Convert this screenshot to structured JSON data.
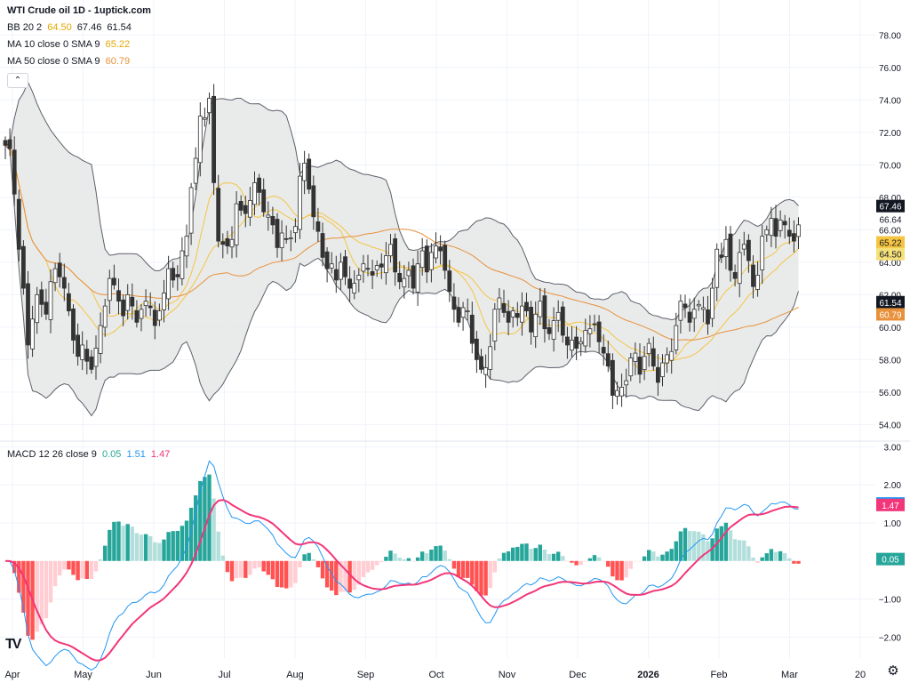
{
  "title": "WTI Crude oil 1D - 1uptick.com",
  "legend": {
    "bb": {
      "label": "BB 20 2",
      "values": [
        "64.50",
        "67.46",
        "61.54"
      ]
    },
    "ma10": {
      "label": "MA 10 close 0 SMA 9",
      "value": "65.22"
    },
    "ma50": {
      "label": "MA 50 close 0 SMA 9",
      "value": "60.79"
    },
    "macd": {
      "label": "MACD 12 26 close 9",
      "values": [
        "0.05",
        "1.51",
        "1.47"
      ]
    }
  },
  "collapse_glyph": "⌃",
  "logo_text": "TV",
  "settings_glyph": "⚙",
  "colors": {
    "bb_basis": "#f5c542",
    "ma10": "#f5c542",
    "ma50": "#e8913a",
    "bb_fill": "#e5e6e6",
    "candle_up": "#ffffff",
    "candle_down": "#333333",
    "macd_line": "#2196f3",
    "signal_line": "#f23679",
    "hist_up_strong": "#26a69a",
    "hist_up_weak": "#b2dfdb",
    "hist_down_strong": "#ff5252",
    "hist_down_weak": "#ffcdd2"
  },
  "chart_data": {
    "type": "candlestick",
    "symbol": "WTI Crude oil",
    "interval": "1D",
    "price_axis": {
      "range": [
        53.2,
        78.4
      ],
      "ticks": [
        "54.00",
        "56.00",
        "58.00",
        "60.00",
        "62.00",
        "64.00",
        "66.00",
        "68.00",
        "70.00",
        "72.00",
        "74.00",
        "76.00",
        "78.00"
      ]
    },
    "price_badges": [
      {
        "label": "67.46",
        "value": 67.46,
        "bg": "#131722",
        "fg": "#ffffff"
      },
      {
        "label": "66.64",
        "value": 66.64,
        "bg": "#ffffff",
        "fg": "#131722"
      },
      {
        "label": "65.22",
        "value": 65.22,
        "bg": "#f5c542",
        "fg": "#131722"
      },
      {
        "label": "64.50",
        "value": 64.5,
        "bg": "#f5e07a",
        "fg": "#131722"
      },
      {
        "label": "61.54",
        "value": 61.54,
        "bg": "#131722",
        "fg": "#ffffff"
      },
      {
        "label": "60.79",
        "value": 60.79,
        "bg": "#e8913a",
        "fg": "#ffffff"
      }
    ],
    "macd_axis": {
      "range": [
        -2.55,
        3.1
      ],
      "ticks": [
        "−2.00",
        "−1.00",
        "1.00",
        "2.00",
        "3.00"
      ],
      "tick_values": [
        -2,
        -1,
        1,
        2,
        3
      ]
    },
    "macd_badges": [
      {
        "label": "1.51",
        "value": 1.51,
        "bg": "#2196f3",
        "fg": "#ffffff"
      },
      {
        "label": "1.47",
        "value": 1.47,
        "bg": "#f23679",
        "fg": "#ffffff"
      },
      {
        "label": "0.05",
        "value": 0.05,
        "bg": "#26a69a",
        "fg": "#ffffff"
      }
    ],
    "x_axis": {
      "ticks": [
        "Apr",
        "May",
        "Jun",
        "Jul",
        "Aug",
        "Sep",
        "Oct",
        "Nov",
        "Dec",
        "2026",
        "Feb",
        "Mar",
        "20"
      ],
      "bold": [
        "2026"
      ]
    },
    "closes": [
      71.2,
      71.0,
      68.2,
      64.8,
      62.4,
      58.9,
      60.5,
      62.0,
      61.4,
      60.8,
      62.8,
      63.6,
      63.1,
      62.4,
      61.0,
      59.2,
      58.2,
      58.9,
      57.9,
      57.4,
      58.7,
      60.1,
      61.3,
      63.0,
      62.6,
      61.6,
      60.7,
      62.0,
      61.3,
      60.3,
      61.1,
      61.6,
      61.2,
      60.1,
      61.0,
      62.1,
      63.6,
      62.9,
      63.1,
      64.7,
      65.6,
      68.6,
      70.4,
      73.0,
      72.9,
      74.1,
      68.9,
      65.3,
      65.1,
      65.0,
      65.4,
      67.6,
      67.2,
      67.0,
      67.8,
      68.9,
      68.3,
      67.1,
      66.9,
      66.3,
      64.9,
      65.8,
      65.4,
      65.5,
      66.2,
      69.3,
      70.1,
      68.5,
      66.8,
      65.9,
      64.3,
      63.6,
      63.9,
      62.9,
      64.0,
      63.1,
      62.4,
      62.7,
      63.2,
      63.9,
      63.6,
      63.2,
      63.8,
      63.7,
      64.4,
      65.1,
      63.4,
      62.8,
      63.0,
      63.5,
      62.4,
      63.9,
      64.7,
      63.4,
      64.6,
      65.0,
      64.7,
      63.5,
      62.2,
      61.1,
      60.3,
      61.2,
      61.0,
      59.0,
      58.0,
      57.4,
      57.5,
      58.8,
      61.1,
      61.8,
      60.9,
      60.3,
      61.0,
      60.6,
      61.3,
      61.0,
      59.7,
      60.8,
      61.6,
      59.9,
      59.6,
      60.4,
      60.9,
      59.5,
      58.9,
      59.2,
      58.7,
      59.1,
      59.8,
      59.9,
      60.2,
      59.1,
      58.4,
      57.6,
      55.8,
      56.1,
      56.3,
      56.7,
      58.1,
      58.4,
      57.1,
      58.2,
      59.0,
      57.6,
      56.6,
      57.8,
      58.3,
      58.5,
      60.1,
      61.6,
      61.2,
      60.3,
      61.1,
      61.4,
      61.2,
      60.2,
      62.4,
      64.8,
      64.3,
      65.4,
      63.5,
      63.0,
      64.6,
      65.1,
      64.1,
      62.5,
      63.2,
      65.6,
      66.0,
      66.7,
      65.6,
      66.6,
      66.3,
      65.6,
      65.3,
      66.3
    ]
  }
}
